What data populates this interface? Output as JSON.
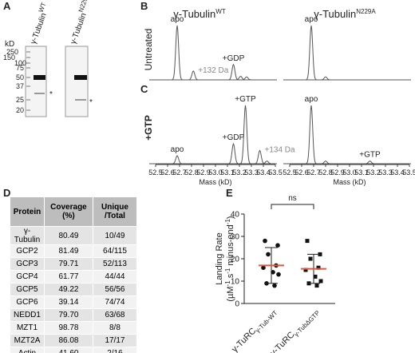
{
  "figure": {
    "panel_labels": [
      "A",
      "B",
      "C",
      "D",
      "E"
    ],
    "column_titles": [
      {
        "text": "γ-Tubulin",
        "sup": "WT"
      },
      {
        "text": "γ-Tubulin",
        "sup": "N229A"
      }
    ],
    "row_labels": [
      "Untreated",
      "+GTP"
    ]
  },
  "gel": {
    "unit": "kD",
    "ladder": [
      250,
      150,
      100,
      75,
      50,
      37,
      25,
      20
    ],
    "lanes": [
      {
        "text": "γ-Tubulin",
        "sup": "WT"
      },
      {
        "text": "γ-Tubulin",
        "sup": "N229A"
      }
    ],
    "marker": "*"
  },
  "table": {
    "header": [
      "Protein",
      "Coverage (%)",
      "Unique /Total"
    ],
    "rows": [
      [
        "γ-Tubulin",
        "80.49",
        "10/49"
      ],
      [
        "GCP2",
        "81.49",
        "64/115"
      ],
      [
        "GCP3",
        "79.71",
        "52/113"
      ],
      [
        "GCP4",
        "61.77",
        "44/44"
      ],
      [
        "GCP5",
        "49.22",
        "56/56"
      ],
      [
        "GCP6",
        "39.14",
        "74/74"
      ],
      [
        "NEDD1",
        "79.70",
        "63/68"
      ],
      [
        "MZT1",
        "98.78",
        "8/8"
      ],
      [
        "MZT2A",
        "86.08",
        "17/17"
      ],
      [
        "Actin",
        "41.60",
        "2/16"
      ]
    ]
  },
  "chart_data": [
    {
      "type": "spectrum",
      "xlim": [
        52.5,
        53.5
      ],
      "ylim": [
        0,
        100
      ],
      "color": "#555555",
      "x": [
        52.68,
        52.815,
        53.15,
        53.21,
        53.26
      ],
      "values": [
        92,
        15,
        26,
        6,
        5
      ],
      "labels": [
        "apo",
        "+132 Da",
        "+GDP",
        null,
        null
      ],
      "label_colors": [
        "#222222",
        "#888888",
        "#222222",
        null,
        null
      ]
    },
    {
      "type": "spectrum",
      "xlim": [
        52.5,
        53.5
      ],
      "ylim": [
        0,
        100
      ],
      "color": "#555555",
      "x": [
        52.68,
        52.8
      ],
      "values": [
        92,
        5
      ],
      "labels": [
        "apo",
        null
      ],
      "label_colors": [
        "#222222",
        null
      ]
    },
    {
      "type": "spectrum",
      "xlim": [
        52.5,
        53.5
      ],
      "ylim": [
        0,
        100
      ],
      "color": "#555555",
      "x": [
        52.68,
        53.15,
        53.25,
        53.37,
        53.43
      ],
      "values": [
        12,
        30,
        88,
        20,
        4
      ],
      "labels": [
        "apo",
        "+GDP",
        "+GTP",
        "+134 Da",
        null
      ],
      "label_colors": [
        "#222222",
        "#222222",
        "#222222",
        "#888888",
        null
      ],
      "xticks": [
        52.5,
        52.6,
        52.7,
        52.8,
        52.9,
        {
          "value": 53,
          "label": "53.0"
        },
        53.1,
        53.2,
        53.3,
        53.4,
        53.5
      ],
      "xlabel": "Mass (kD)"
    },
    {
      "type": "spectrum",
      "xlim": [
        52.5,
        53.5
      ],
      "ylim": [
        0,
        100
      ],
      "color": "#555555",
      "x": [
        52.68,
        52.8,
        53.17
      ],
      "values": [
        88,
        4,
        4
      ],
      "labels": [
        "apo",
        null,
        "+GTP"
      ],
      "label_colors": [
        "#222222",
        null,
        "#222222"
      ],
      "xticks": [
        52.5,
        52.6,
        52.7,
        52.8,
        52.9,
        {
          "value": 53,
          "label": "53.0"
        },
        53.1,
        53.2,
        53.3,
        53.4,
        53.5
      ],
      "xlabel": "Mass (kD)"
    },
    {
      "type": "strip",
      "ylim": [
        0,
        40
      ],
      "yticks": [
        0,
        10,
        20,
        30,
        40
      ],
      "ylabel": [
        {
          "text": "Landing Rate"
        },
        {
          "text": "(µM"
        },
        {
          "text": "-1",
          "sup": true
        },
        {
          "text": " s"
        },
        {
          "text": "-1",
          "sup": true
        },
        {
          "text": " minus-end"
        },
        {
          "text": "-1",
          "sup": true
        },
        {
          "text": ")"
        }
      ],
      "categories": [
        {
          "text": "γ-TuRC",
          "sub": "γ-Tub-WT"
        },
        {
          "text": "γ-TuRC",
          "sub": "γ-TubΔGTP"
        }
      ],
      "series": [
        {
          "marker": "circle",
          "color": "#111111",
          "values": [
            28,
            26,
            22,
            17,
            16,
            14,
            13,
            9,
            8
          ],
          "mean": 17,
          "sd": 8
        },
        {
          "marker": "square",
          "color": "#111111",
          "values": [
            28,
            22,
            20,
            16,
            15,
            12,
            10,
            9,
            8
          ],
          "mean": 15.5,
          "sd": 6.5
        }
      ],
      "mean_color": "#e8553a",
      "significance": "ns"
    }
  ]
}
